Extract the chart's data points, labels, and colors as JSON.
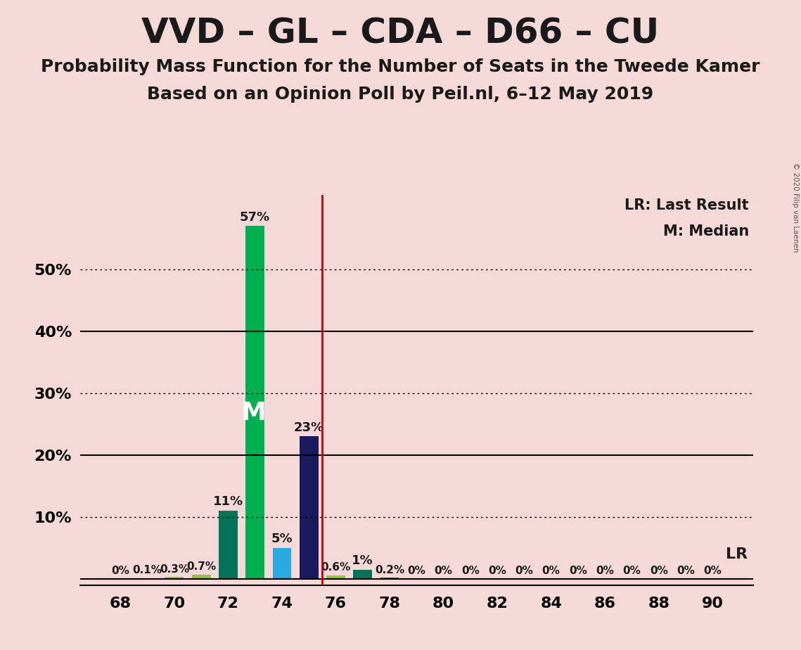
{
  "title": "VVD – GL – CDA – D66 – CU",
  "subtitle1": "Probability Mass Function for the Number of Seats in the Tweede Kamer",
  "subtitle2": "Based on an Opinion Poll by Peil.nl, 6–12 May 2019",
  "copyright": "© 2020 Filip van Laenen",
  "background_color": "#f5d9d9",
  "seats": [
    68,
    69,
    70,
    71,
    72,
    73,
    74,
    75,
    76,
    77,
    78,
    79,
    80,
    81,
    82,
    83,
    84,
    85,
    86,
    87,
    88,
    89,
    90
  ],
  "probabilities": [
    0.0,
    0.1,
    0.3,
    0.7,
    11.0,
    57.0,
    5.0,
    23.0,
    0.6,
    1.5,
    0.2,
    0.0,
    0.0,
    0.0,
    0.0,
    0.0,
    0.0,
    0.0,
    0.0,
    0.0,
    0.0,
    0.0,
    0.0
  ],
  "bar_colors": [
    "#1a1a5e",
    "#1a1a5e",
    "#8dc63f",
    "#8dc63f",
    "#007358",
    "#00b050",
    "#29abe2",
    "#1a1a5e",
    "#8dc63f",
    "#007358",
    "#007358",
    "#cccccc",
    "#cccccc",
    "#cccccc",
    "#cccccc",
    "#cccccc",
    "#cccccc",
    "#cccccc",
    "#cccccc",
    "#cccccc",
    "#cccccc",
    "#cccccc",
    "#cccccc"
  ],
  "median_seat": 73,
  "lr_seat": 75.5,
  "yticks": [
    0,
    10,
    20,
    30,
    40,
    50
  ],
  "ytick_labels": [
    "",
    "10%",
    "20%",
    "30%",
    "40%",
    "50%"
  ],
  "hlines_solid": [
    0,
    20,
    40
  ],
  "hlines_dotted": [
    10,
    30,
    50
  ],
  "legend_lr": "LR: Last Result",
  "legend_m": "M: Median",
  "lr_label": "LR",
  "m_label": "M",
  "title_fontsize": 36,
  "subtitle_fontsize": 18,
  "label_fontsize": 14,
  "bar_label_fontsize": 13
}
